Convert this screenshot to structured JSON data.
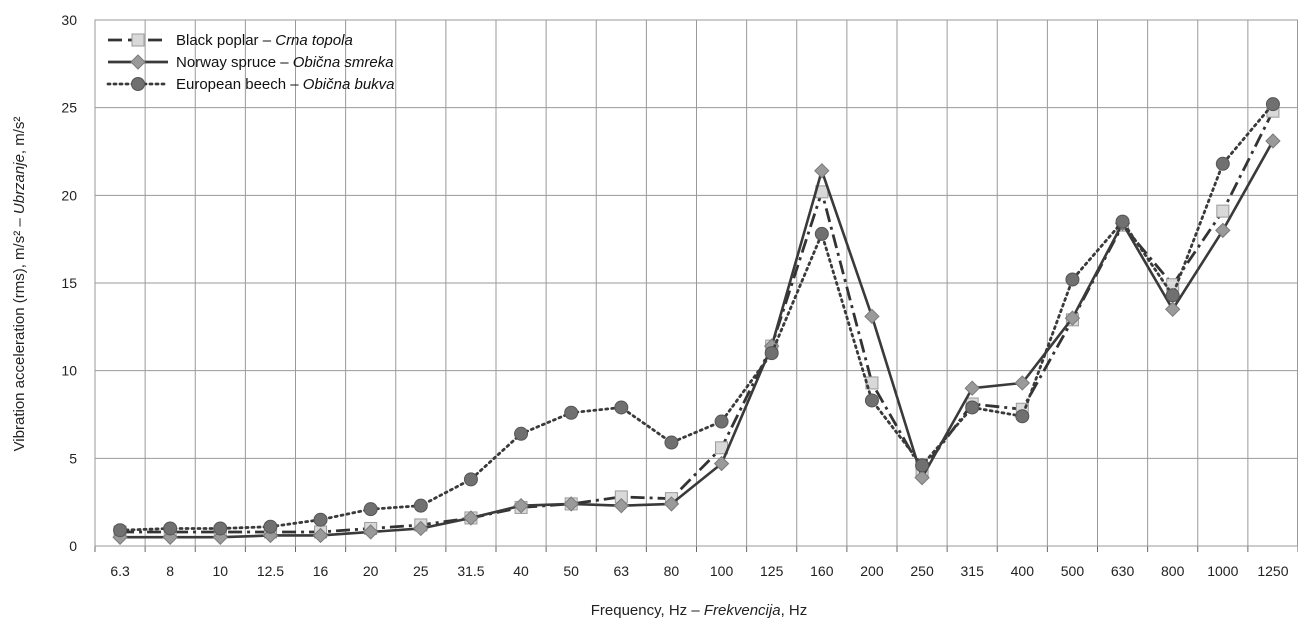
{
  "chart_data": {
    "type": "line",
    "xlabel": "Frequency, Hz",
    "xlabel_italic": "Frekvencija",
    "xlabel_unit": ", Hz",
    "xlabel_sep": " – ",
    "ylabel": "Vibration acceleration (rms), m/s²",
    "ylabel_italic": "Ubrzanje",
    "ylabel_unit": ", m/s²",
    "ylabel_sep": " – ",
    "ylim": [
      0,
      30
    ],
    "yticks": [
      "0",
      "5",
      "10",
      "15",
      "20",
      "25",
      "30"
    ],
    "categories": [
      "6.3",
      "8",
      "10",
      "12.5",
      "16",
      "20",
      "25",
      "31.5",
      "40",
      "50",
      "63",
      "80",
      "100",
      "125",
      "160",
      "200",
      "250",
      "315",
      "400",
      "500",
      "630",
      "800",
      "1000",
      "1250"
    ],
    "grid": true,
    "legend_position": "top-left",
    "series": [
      {
        "name": "Black poplar",
        "name_italic": "Crna topola",
        "name_sep": " – ",
        "line_style": "dash-dot",
        "marker": "square",
        "color": "#333333",
        "marker_fill": "#d9d9d9",
        "values": [
          0.8,
          0.8,
          0.8,
          0.8,
          0.8,
          1.0,
          1.2,
          1.6,
          2.2,
          2.4,
          2.8,
          2.7,
          5.6,
          11.4,
          20.2,
          9.3,
          4.3,
          8.1,
          7.8,
          12.9,
          18.3,
          14.9,
          19.1,
          24.8
        ]
      },
      {
        "name": "Norway spruce",
        "name_italic": "Obična smreka",
        "name_sep": " – ",
        "line_style": "solid",
        "marker": "diamond",
        "color": "#3a3a3a",
        "marker_fill": "#9a9a9a",
        "values": [
          0.5,
          0.5,
          0.5,
          0.6,
          0.6,
          0.8,
          1.0,
          1.6,
          2.3,
          2.4,
          2.3,
          2.4,
          4.7,
          11.4,
          21.4,
          13.1,
          3.9,
          9.0,
          9.3,
          13.0,
          18.4,
          13.5,
          18.0,
          23.1
        ]
      },
      {
        "name": "European beech",
        "name_italic": "Obična bukva",
        "name_sep": " – ",
        "line_style": "dotted",
        "marker": "circle",
        "color": "#3a3a3a",
        "marker_fill": "#707070",
        "values": [
          0.9,
          1.0,
          1.0,
          1.1,
          1.5,
          2.1,
          2.3,
          3.8,
          6.4,
          7.6,
          7.9,
          5.9,
          7.1,
          11.0,
          17.8,
          8.3,
          4.6,
          7.9,
          7.4,
          15.2,
          18.5,
          14.3,
          21.8,
          25.2
        ]
      }
    ]
  }
}
